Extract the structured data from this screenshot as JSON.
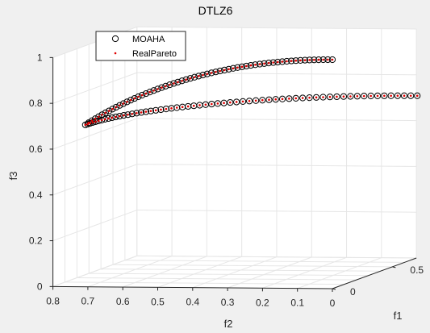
{
  "chart_data": {
    "type": "scatter",
    "title": "DTLZ6",
    "xlabel": "f1",
    "ylabel": "f2",
    "zlabel": "f3",
    "xlim": [
      0,
      0.7
    ],
    "ylim": [
      0,
      0.8
    ],
    "zlim": [
      0,
      1
    ],
    "x_ticks": [
      "0",
      "0.5"
    ],
    "y_ticks": [
      "0.8",
      "0.7",
      "0.6",
      "0.5",
      "0.4",
      "0.3",
      "0.2",
      "0.1",
      "0"
    ],
    "z_ticks": [
      "0",
      "0.2",
      "0.4",
      "0.6",
      "0.8",
      "1"
    ],
    "grid": true,
    "legend_position": "top-left",
    "series": [
      {
        "name": "MOAHA",
        "marker": "open-circle",
        "color": "#000000",
        "points": "(f1, f2, f3) along the Pareto front: from (0.707, 0, 0.707) around to (0, 0.707, 0.707) and down to (0, 0, 1)"
      },
      {
        "name": "RealPareto",
        "marker": "dot",
        "color": "#e00000",
        "points": "dense sampling of the same curve"
      }
    ]
  },
  "colors": {
    "background": "#f0f0f0",
    "axes_face": "#ffffff",
    "grid": "#e6e6e6",
    "axis": "#262626",
    "circle_marker": "#000000",
    "dot_marker": "#e00000"
  }
}
